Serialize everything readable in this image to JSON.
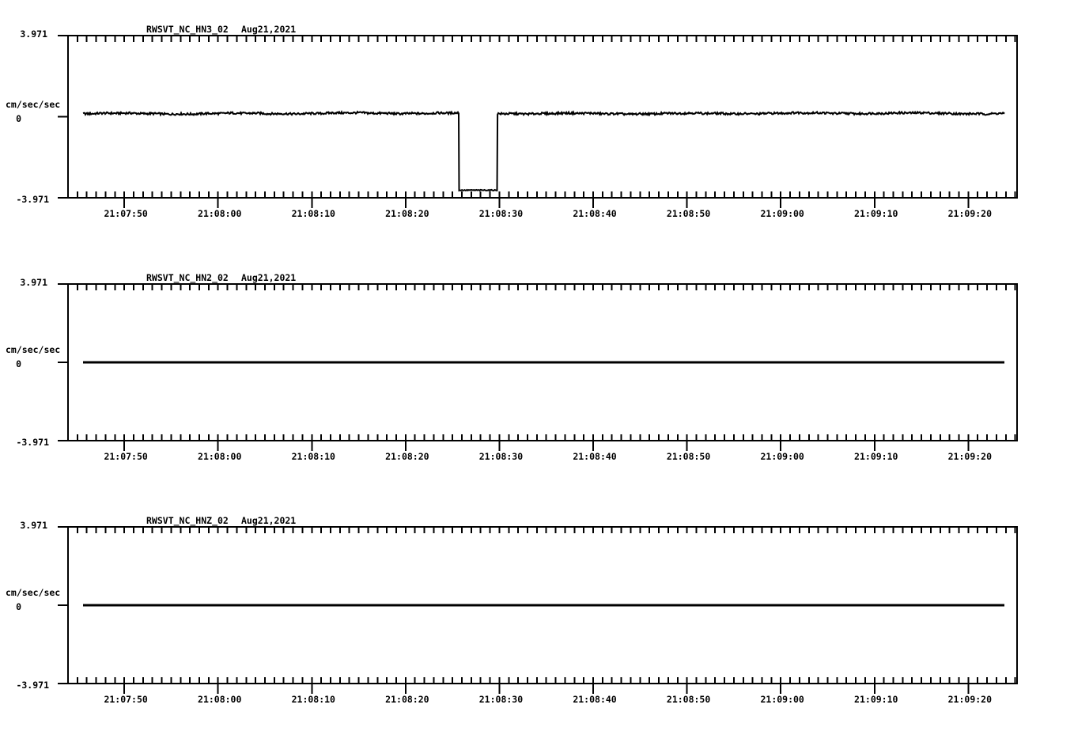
{
  "page": {
    "background_color": "#ffffff",
    "ink_color": "#000000",
    "description": "Three stacked seismic acceleration waveform plots for station RWSVT (NC network), channels HN3, HN2, HNZ, recorded Aug 21 2021 around 21:08 UTC"
  },
  "time_axis": {
    "tick_reference": "21:07:50",
    "visible_range_start": "21:07:44",
    "visible_range_end": "21:09:25",
    "start_offset_s": -6.0,
    "end_offset_s": 95.2,
    "major_tick_interval_s": 10,
    "minor_tick_interval_s": 1,
    "major_tick_offsets_s": [
      0,
      10,
      20,
      30,
      40,
      50,
      60,
      70,
      80,
      90
    ]
  },
  "chart_data": [
    {
      "type": "line",
      "title": "RWSVT_NC_HN3_02",
      "date": "Aug21,2021",
      "ylabel": "cm/sec/sec",
      "ylim": [
        -3.971,
        3.971
      ],
      "ytick_labels": [
        "3.971",
        "0",
        "-3.971"
      ],
      "xtick_labels": [
        "21:07:50",
        "21:08:00",
        "21:08:10",
        "21:08:20",
        "21:08:30",
        "21:08:40",
        "21:08:50",
        "21:09:00",
        "21:09:10",
        "21:09:20"
      ],
      "grid": false,
      "legend": false,
      "trace": {
        "line_width": 2,
        "start_s": -4.4,
        "end_s": 93.9,
        "segments": [
          {
            "from_s": -4.4,
            "to_s": 35.7,
            "level": 0.16,
            "noise_amp": 0.05,
            "wander_amp": 0.04
          },
          {
            "from_s": 35.7,
            "to_s": 39.8,
            "level": -3.6,
            "noise_amp": 0.02,
            "wander_amp": 0
          },
          {
            "from_s": 39.8,
            "to_s": 93.9,
            "level": 0.16,
            "noise_amp": 0.05,
            "wander_amp": 0.04
          }
        ],
        "description": "Noisy flat baseline near +0.16 cm/sec/sec with a square pulse dropping to about -3.6 from 21:08:26 to 21:08:30"
      }
    },
    {
      "type": "line",
      "title": "RWSVT_NC_HN2_02",
      "date": "Aug21,2021",
      "ylabel": "cm/sec/sec",
      "ylim": [
        -3.971,
        3.971
      ],
      "ytick_labels": [
        "3.971",
        "0",
        "-3.971"
      ],
      "xtick_labels": [
        "21:07:50",
        "21:08:00",
        "21:08:10",
        "21:08:20",
        "21:08:30",
        "21:08:40",
        "21:08:50",
        "21:09:00",
        "21:09:10",
        "21:09:20"
      ],
      "grid": false,
      "legend": false,
      "trace": {
        "line_width": 3,
        "start_s": -4.4,
        "end_s": 93.9,
        "segments": [
          {
            "from_s": -4.4,
            "to_s": 93.9,
            "level": 0,
            "noise_amp": 0,
            "wander_amp": 0
          }
        ],
        "description": "Perfectly flat line at 0 cm/sec/sec"
      }
    },
    {
      "type": "line",
      "title": "RWSVT_NC_HNZ_02",
      "date": "Aug21,2021",
      "ylabel": "cm/sec/sec",
      "ylim": [
        -3.971,
        3.971
      ],
      "ytick_labels": [
        "3.971",
        "0",
        "-3.971"
      ],
      "xtick_labels": [
        "21:07:50",
        "21:08:00",
        "21:08:10",
        "21:08:20",
        "21:08:30",
        "21:08:40",
        "21:08:50",
        "21:09:00",
        "21:09:10",
        "21:09:20"
      ],
      "grid": false,
      "legend": false,
      "trace": {
        "line_width": 3,
        "start_s": -4.4,
        "end_s": 93.9,
        "segments": [
          {
            "from_s": -4.4,
            "to_s": 93.9,
            "level": 0,
            "noise_amp": 0,
            "wander_amp": 0
          }
        ],
        "description": "Perfectly flat line at 0 cm/sec/sec"
      }
    }
  ]
}
